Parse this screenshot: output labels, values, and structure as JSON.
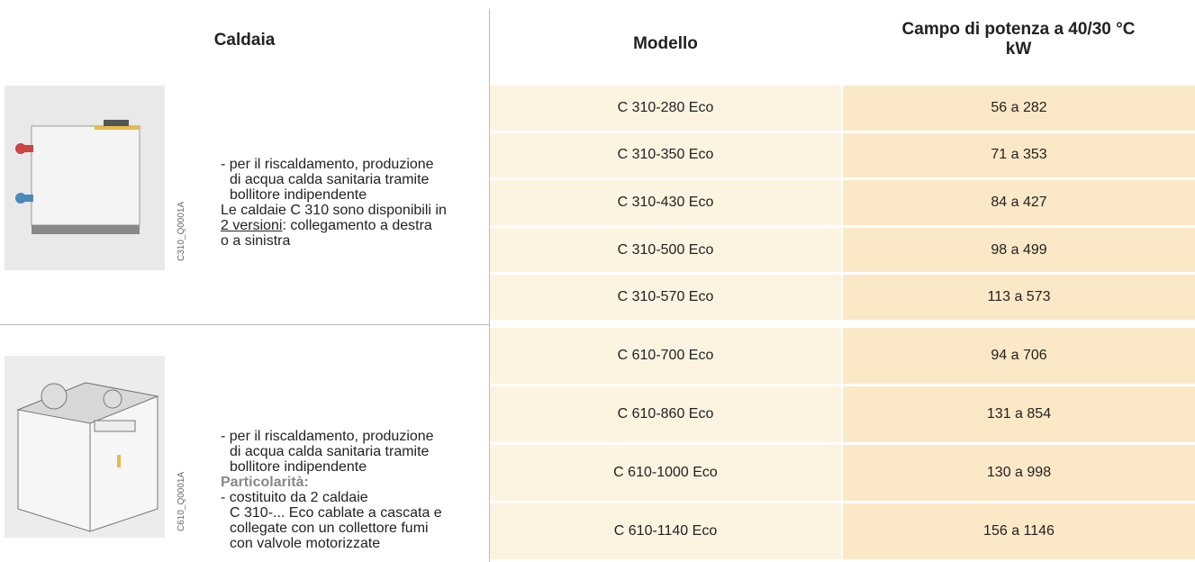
{
  "header": {
    "caldaia": "Caldaia",
    "modello": "Modello",
    "potenza": [
      "Campo di potenza a 40/30 °C",
      "kW"
    ]
  },
  "groups": [
    {
      "image_code": "C310_Q0001A",
      "description": [
        "- per il riscaldamento, produzione",
        "di acqua calda sanitaria tramite",
        "bollitore indipendente",
        "Le caldaie C 310 sono disponibili in"
      ],
      "versions_link": "2 versioni",
      "versions_text": ": collegamento a destra",
      "last_line": "o a sinistra",
      "rows": [
        {
          "model": "C 310-280 Eco",
          "range": "56 a 282"
        },
        {
          "model": "C 310-350 Eco",
          "range": "71 a 353"
        },
        {
          "model": "C 310-430 Eco",
          "range": "84 a 427"
        },
        {
          "model": "C 310-500 Eco",
          "range": "98 a 499"
        },
        {
          "model": "C 310-570 Eco",
          "range": "113 a 573"
        }
      ]
    },
    {
      "image_code": "C610_Q0001A",
      "description": [
        "- per il riscaldamento, produzione",
        "di acqua calda sanitaria tramite",
        "bollitore indipendente"
      ],
      "special_label": "Particolarità:",
      "special_lines": [
        "- costituito da 2 caldaie",
        "C 310-... Eco cablate a cascata e",
        "collegate con un collettore fumi",
        "con valvole motorizzate"
      ],
      "rows": [
        {
          "model": "C 610-700 Eco",
          "range": "94 a 706"
        },
        {
          "model": "C 610-860 Eco",
          "range": "131 a 854"
        },
        {
          "model": "C 610-1000 Eco",
          "range": "130 a 998"
        },
        {
          "model": "C 610-1140 Eco",
          "range": "156 a 1146"
        }
      ]
    }
  ]
}
